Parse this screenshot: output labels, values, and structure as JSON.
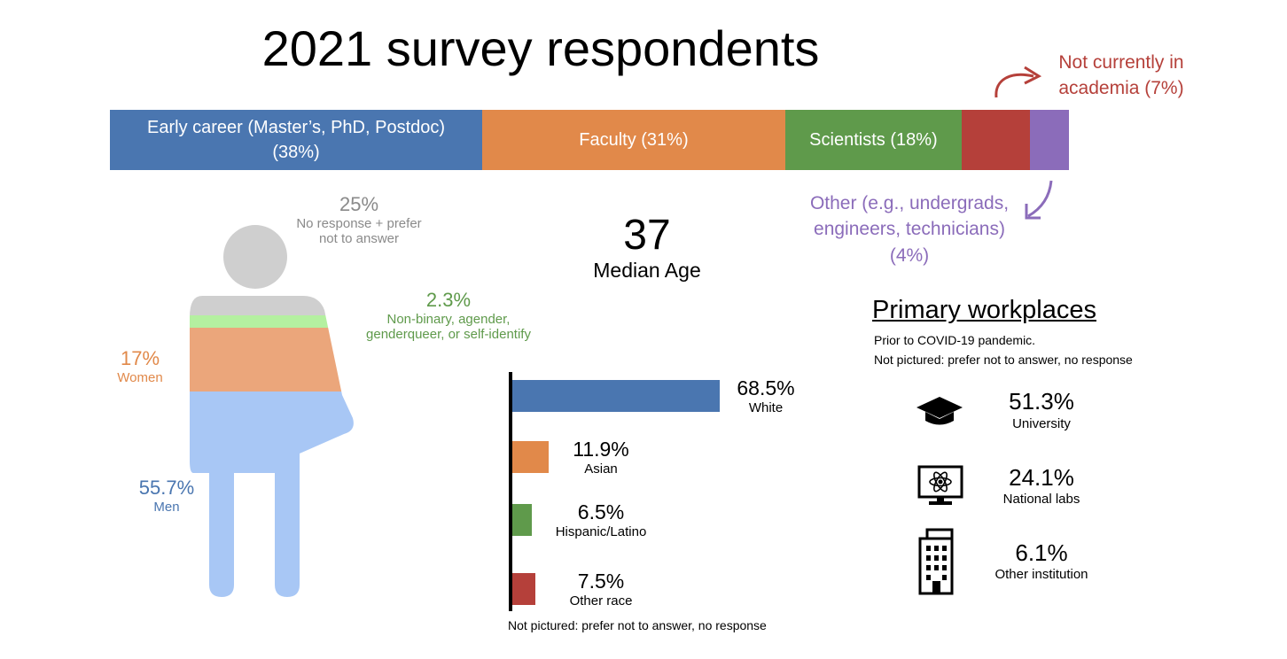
{
  "title": "2021 survey respondents",
  "colors": {
    "blue": "#4a76b0",
    "orange": "#e1894a",
    "green": "#5f9a4b",
    "red": "#b5403a",
    "purple": "#8b6cba",
    "men": "#a8c7f5",
    "women": "#eba67b",
    "nonbinary": "#b4f0a0",
    "noresp": "#cfcfcf"
  },
  "chart_data": [
    {
      "type": "bar",
      "stacked": true,
      "categories": [
        "Early career (Master’s, PhD, Postdoc)",
        "Faculty",
        "Scientists",
        "Not currently in academia",
        "Other (e.g., undergrads, engineers, technicians)"
      ],
      "values": [
        38,
        31,
        18,
        7,
        4
      ],
      "segments": [
        {
          "label_line1": "Early career (Master’s, PhD, Postdoc)",
          "label_line2": "(38%)",
          "value": 38,
          "color": "#4a76b0"
        },
        {
          "label_line1": "Faculty (31%)",
          "label_line2": "",
          "value": 31,
          "color": "#e1894a"
        },
        {
          "label_line1": "Scientists (18%)",
          "label_line2": "",
          "value": 18,
          "color": "#5f9a4b"
        },
        {
          "label_line1": "",
          "label_line2": "",
          "value": 7,
          "color": "#b5403a"
        },
        {
          "label_line1": "",
          "label_line2": "",
          "value": 4,
          "color": "#8b6cba"
        }
      ],
      "callouts": {
        "not_academia": [
          "Not currently in",
          "academia (7%)"
        ],
        "other": [
          "Other (e.g., undergrads,",
          "engineers, technicians)",
          "(4%)"
        ]
      }
    },
    {
      "type": "area",
      "categories": [
        "No response + prefer not to answer",
        "Non-binary, agender, genderqueer, or self-identify",
        "Women",
        "Men"
      ],
      "values": [
        25,
        2.3,
        17,
        55.7
      ],
      "labels": {
        "noresp_pct": "25%",
        "noresp_line1": "No response + prefer",
        "noresp_line2": "not to answer",
        "nb_pct": "2.3%",
        "nb_line1": "Non-binary, agender,",
        "nb_line2": "genderqueer, or self-identify",
        "women_pct": "17%",
        "women_lbl": "Women",
        "men_pct": "55.7%",
        "men_lbl": "Men"
      }
    },
    {
      "type": "bar",
      "orientation": "horizontal",
      "categories": [
        "White",
        "Asian",
        "Hispanic/Latino",
        "Other race"
      ],
      "values": [
        68.5,
        11.9,
        6.5,
        7.5
      ],
      "value_labels": [
        "68.5%",
        "11.9%",
        "6.5%",
        "7.5%"
      ],
      "colors": [
        "#4a76b0",
        "#e1894a",
        "#5f9a4b",
        "#b5403a"
      ],
      "note": "Not pictured: prefer not to answer, no response"
    }
  ],
  "median": {
    "value": "37",
    "label": "Median Age"
  },
  "workplaces": {
    "title": "Primary workplaces",
    "note1": "Prior to COVID-19 pandemic.",
    "note2": "Not pictured: prefer not to answer, no response",
    "items": [
      {
        "value": "51.3%",
        "label": "University",
        "icon": "graduation-cap-icon"
      },
      {
        "value": "24.1%",
        "label": "National labs",
        "icon": "atom-monitor-icon"
      },
      {
        "value": "6.1%",
        "label": "Other institution",
        "icon": "office-building-icon"
      }
    ]
  }
}
